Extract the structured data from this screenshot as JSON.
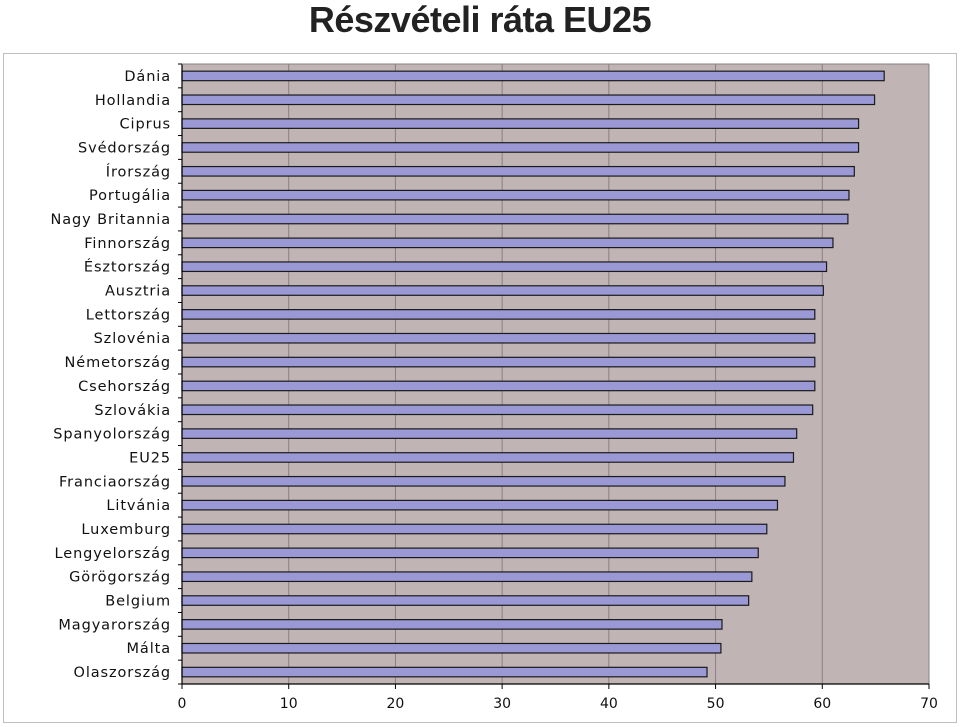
{
  "title": "Részvételi ráta EU25",
  "colors": {
    "plot_background": "#c0b4b4",
    "bar_fill": "#9b98d6",
    "bar_stroke": "#1a1a1a",
    "grid": "#8a8080",
    "axis": "#000000"
  },
  "chart_data": {
    "type": "bar",
    "orientation": "horizontal",
    "title": "Részvételi ráta EU25",
    "xlabel": "",
    "ylabel": "",
    "xlim": [
      0,
      70
    ],
    "x_ticks": [
      "0",
      "10",
      "20",
      "30",
      "40",
      "50",
      "60",
      "70"
    ],
    "grid": "vertical major gridlines",
    "legend": "none",
    "categories": [
      "Dánia",
      "Hollandia",
      "Ciprus",
      "Svédország",
      "Írország",
      "Portugália",
      "Nagy Britannia",
      "Finnország",
      "Észtország",
      "Ausztria",
      "Lettország",
      "Szlovénia",
      "Németország",
      "Csehország",
      "Szlovákia",
      "Spanyolország",
      "EU25",
      "Franciaország",
      "Litvánia",
      "Luxemburg",
      "Lengyelország",
      "Görögország",
      "Belgium",
      "Magyarország",
      "Málta",
      "Olaszország"
    ],
    "values": [
      65.8,
      64.9,
      63.4,
      63.4,
      63.0,
      62.5,
      62.4,
      61.0,
      60.4,
      60.1,
      59.3,
      59.3,
      59.3,
      59.3,
      59.1,
      57.6,
      57.3,
      56.5,
      55.8,
      54.8,
      54.0,
      53.4,
      53.1,
      50.6,
      50.5,
      49.2
    ]
  }
}
